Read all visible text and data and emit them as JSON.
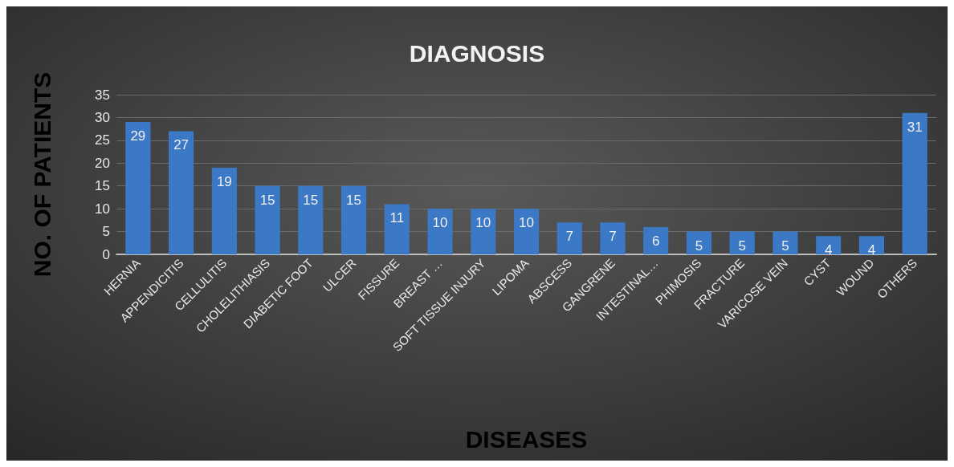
{
  "chart_data": {
    "type": "bar",
    "title": "DIAGNOSIS",
    "xlabel": "DISEASES",
    "ylabel": "NO. OF PATIENTS",
    "categories": [
      "HERNIA",
      "APPENDICITIS",
      "CELLULITIS",
      "CHOLELITHIASIS",
      "DIABETIC FOOT",
      "ULCER",
      "FISSURE",
      "BREAST …",
      "SOFT TISSUE INJURY",
      "LIPOMA",
      "ABSCESS",
      "GANGRENE",
      "INTESTINAL…",
      "PHIMOSIS",
      "FRACTURE",
      "VARICOSE VEIN",
      "CYST",
      "WOUND",
      "OTHERS"
    ],
    "values": [
      29,
      27,
      19,
      15,
      15,
      15,
      11,
      10,
      10,
      10,
      7,
      7,
      6,
      5,
      5,
      5,
      4,
      4,
      31
    ],
    "color": "#3b78c6",
    "ylim": [
      0,
      35
    ],
    "yticks": [
      0,
      5,
      10,
      15,
      20,
      25,
      30,
      35
    ],
    "grid": "y",
    "data_labels": true
  }
}
